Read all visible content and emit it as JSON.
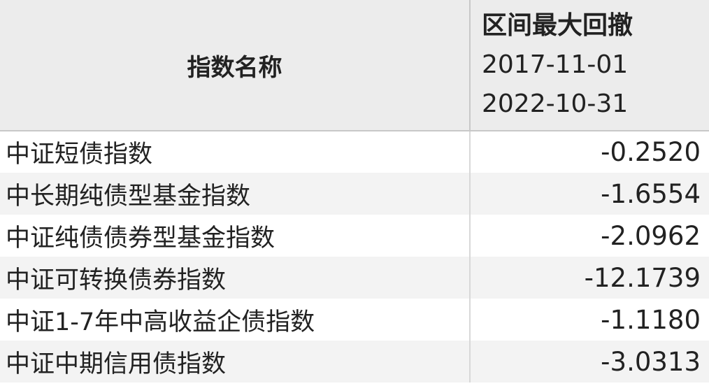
{
  "table": {
    "headers": {
      "name": "指数名称",
      "drawdown_title": "区间最大回撤",
      "start_date": "2017-11-01",
      "end_date": "2022-10-31"
    },
    "rows": [
      {
        "name": "中证短债指数",
        "value": "-0.2520"
      },
      {
        "name": "中长期纯债型基金指数",
        "value": "-1.6554"
      },
      {
        "name": "中证纯债债券型基金指数",
        "value": "-2.0962"
      },
      {
        "name": "中证可转换债券指数",
        "value": "-12.1739"
      },
      {
        "name": "中证1-7年中高收益企债指数",
        "value": "-1.1180"
      },
      {
        "name": "中证中期信用债指数",
        "value": "-3.0313"
      }
    ]
  }
}
